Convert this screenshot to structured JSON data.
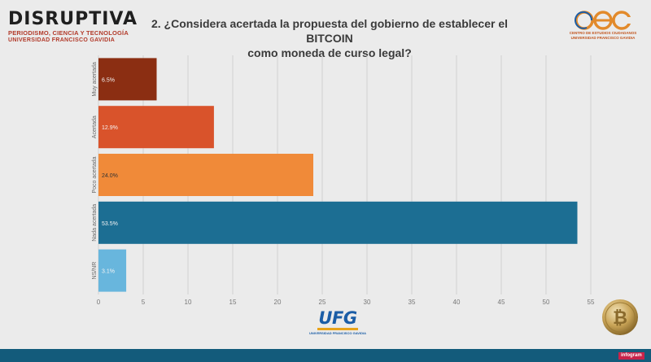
{
  "header": {
    "brand_name": "DISRUPTIVA",
    "brand_tagline_1": "PERIODISMO, CIENCIA Y TECNOLOGÍA",
    "brand_tagline_2": "UNIVERSIDAD FRANCISCO GAVIDIA",
    "title_line_1": "2. ¿Considera acertada la propuesta del gobierno de establecer el BITCOIN",
    "title_line_2": "como moneda de curso legal?",
    "partner_line_1": "CENTRO DE ESTUDIOS CIUDADANOS",
    "partner_line_2": "UNIVERSIDAD FRANCISCO GAVIDIA"
  },
  "footer": {
    "university_logo_text": "UFG",
    "university_logo_sub": "UNIVERSIDAD FRANCISCO GAVIDIA",
    "coin_icon": "bitcoin-coin-icon",
    "badge": "infogram"
  },
  "colors": {
    "muy_acertada": "#8b2e12",
    "acertada": "#d9532b",
    "poco_acertada": "#f08a39",
    "nada_acertada": "#1c6e93",
    "ns_nr": "#68b6dd",
    "footer": "#135b7b",
    "brand_red": "#b23a2a",
    "ufg_blue": "#1b5da6"
  },
  "chart_data": {
    "type": "bar",
    "orientation": "horizontal",
    "categories": [
      "Muy acertada",
      "Acertada",
      "Poco acertada",
      "Nada acertada",
      "NS/NR"
    ],
    "values": [
      6.5,
      12.9,
      24.0,
      53.5,
      3.1
    ],
    "value_labels": [
      "6.5%",
      "12.9%",
      "24.0%",
      "53.5%",
      "3.1%"
    ],
    "xlim": [
      0,
      55
    ],
    "xticks": [
      "0",
      "5",
      "10",
      "15",
      "20",
      "25",
      "30",
      "35",
      "40",
      "45",
      "50",
      "55"
    ],
    "grid": true,
    "legend": "none"
  }
}
